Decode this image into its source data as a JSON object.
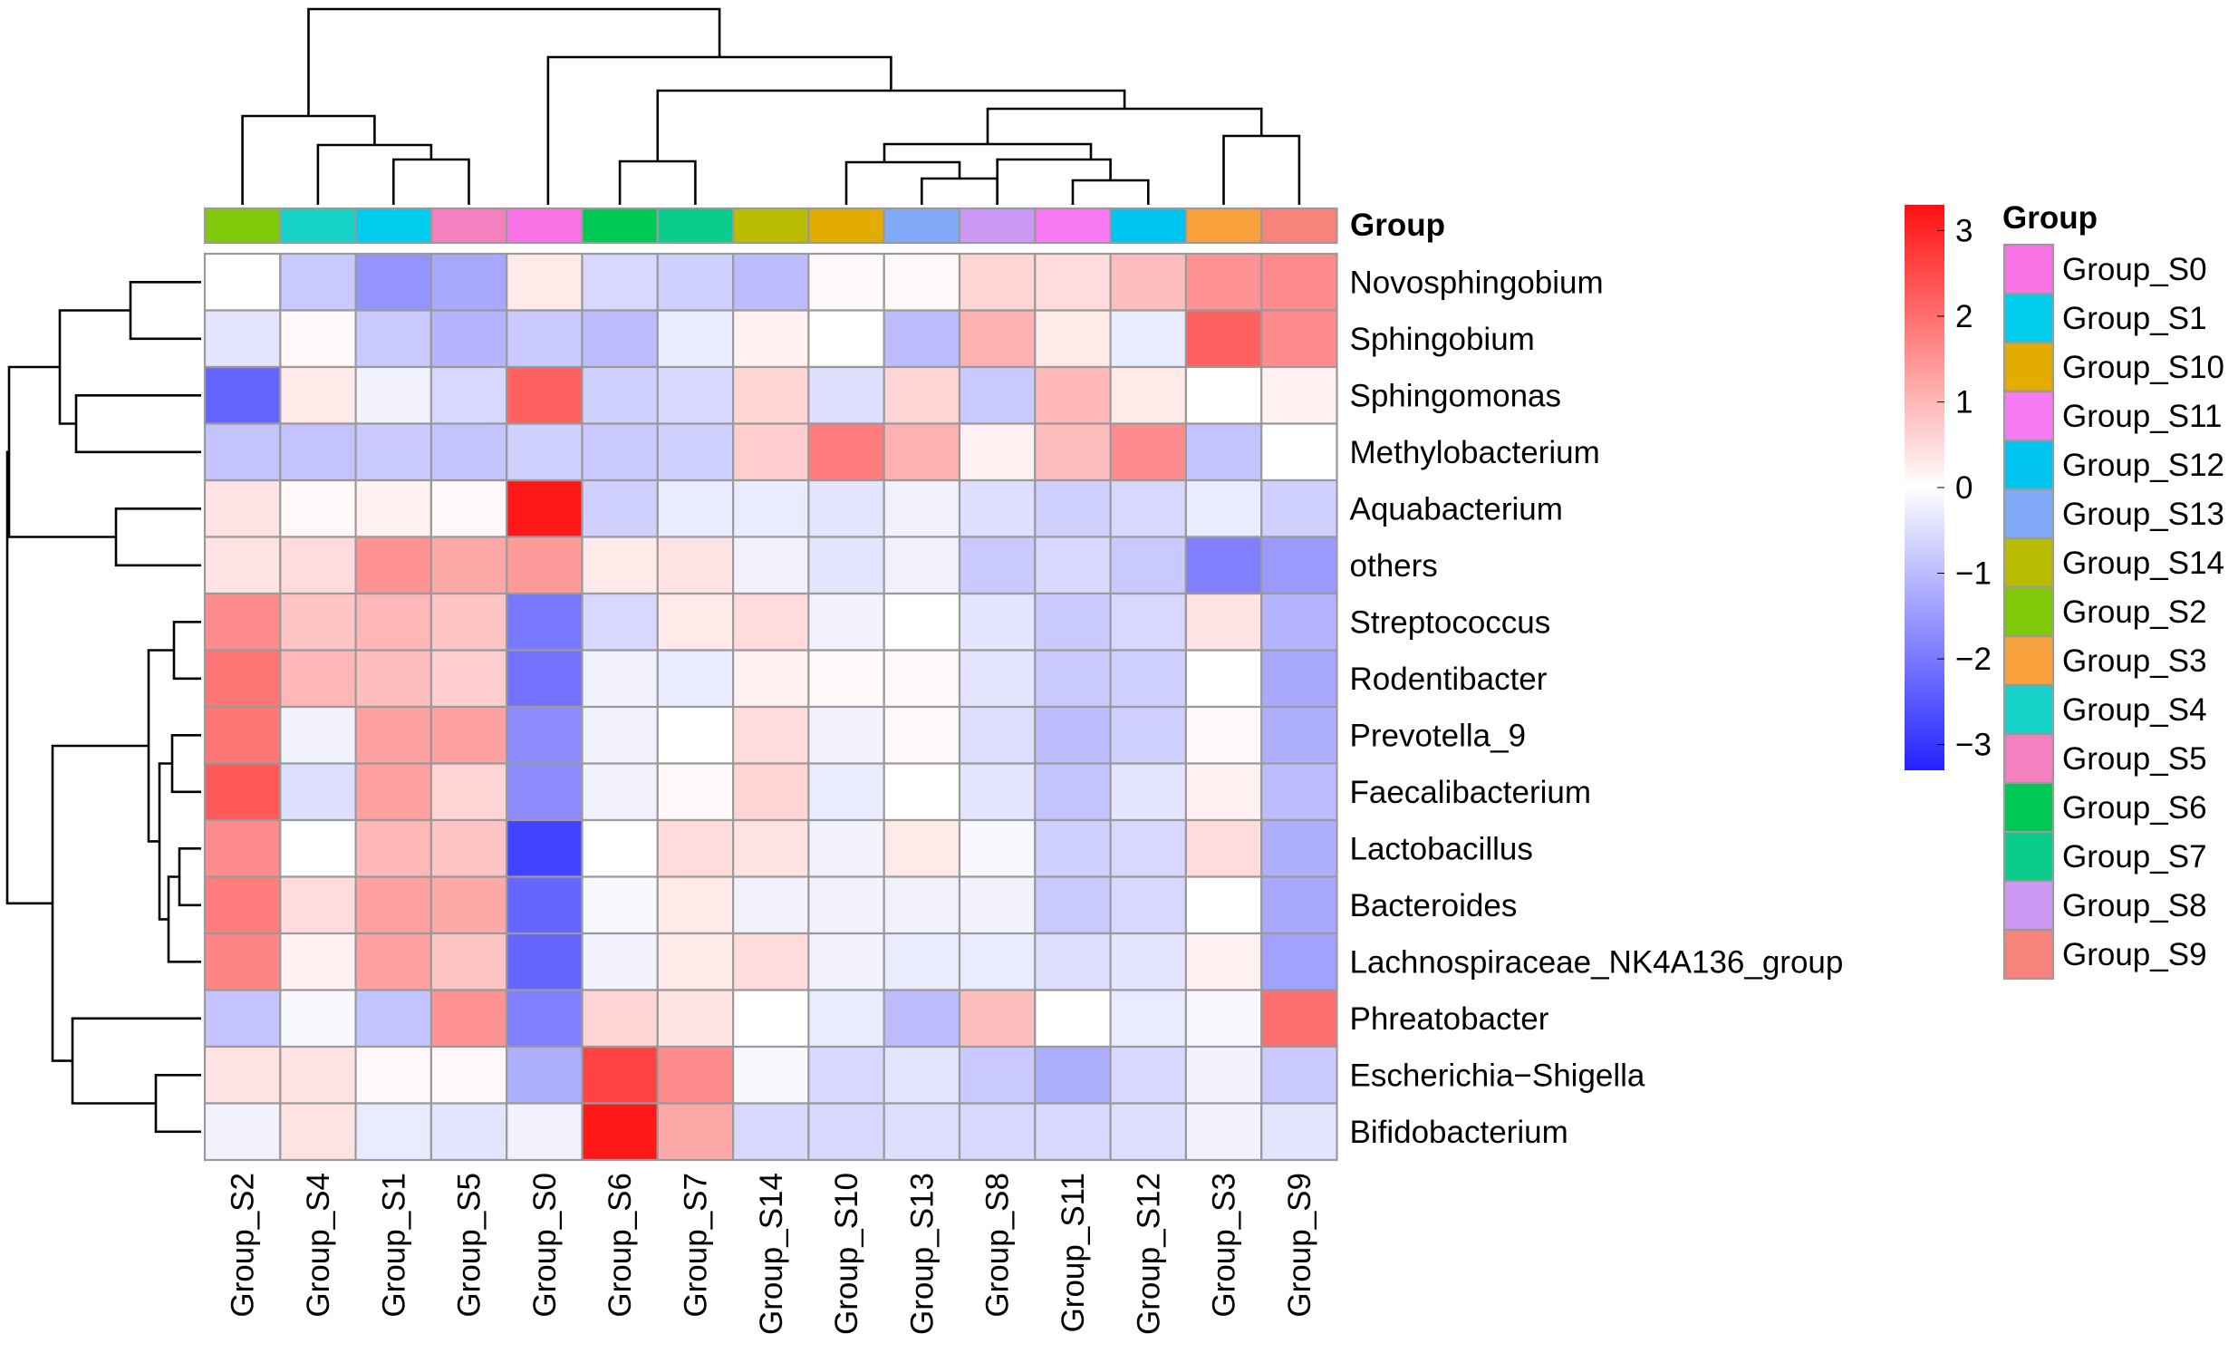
{
  "chart_data": {
    "type": "heatmap",
    "title": "",
    "annotation_title": "Group",
    "columns": [
      "Group_S2",
      "Group_S4",
      "Group_S1",
      "Group_S5",
      "Group_S0",
      "Group_S6",
      "Group_S7",
      "Group_S14",
      "Group_S10",
      "Group_S13",
      "Group_S8",
      "Group_S11",
      "Group_S12",
      "Group_S3",
      "Group_S9"
    ],
    "rows": [
      "Novosphingobium",
      "Sphingobium",
      "Sphingomonas",
      "Methylobacterium",
      "Aquabacterium",
      "others",
      "Streptococcus",
      "Rodentibacter",
      "Prevotella_9",
      "Faecalibacterium",
      "Lactobacillus",
      "Bacteroides",
      "Lachnospiraceae_NK4A136_group",
      "Phreatobacter",
      "Escherichia−Shigella",
      "Bifidobacterium"
    ],
    "values": [
      [
        0.0,
        -0.8,
        -1.6,
        -1.3,
        0.3,
        -0.6,
        -0.7,
        -1.0,
        0.1,
        0.1,
        0.6,
        0.5,
        0.9,
        1.5,
        1.6
      ],
      [
        -0.4,
        0.1,
        -0.8,
        -1.1,
        -0.8,
        -1.0,
        -0.3,
        0.2,
        0.0,
        -1.0,
        1.1,
        0.3,
        -0.3,
        2.2,
        1.6
      ],
      [
        -2.3,
        0.3,
        -0.2,
        -0.6,
        2.2,
        -0.7,
        -0.6,
        0.6,
        -0.5,
        0.6,
        -0.8,
        1.0,
        0.3,
        0.0,
        0.2
      ],
      [
        -0.9,
        -0.9,
        -0.8,
        -0.9,
        -0.7,
        -0.8,
        -0.7,
        0.7,
        1.8,
        1.1,
        0.2,
        0.9,
        1.6,
        -0.9,
        0.0
      ],
      [
        0.4,
        0.1,
        0.2,
        0.1,
        3.2,
        -0.7,
        -0.3,
        -0.3,
        -0.4,
        -0.2,
        -0.5,
        -0.7,
        -0.6,
        -0.3,
        -0.7
      ],
      [
        0.4,
        0.5,
        1.5,
        1.2,
        1.4,
        0.3,
        0.4,
        -0.2,
        -0.4,
        -0.2,
        -0.8,
        -0.6,
        -0.8,
        -1.9,
        -1.5
      ],
      [
        1.6,
        0.8,
        1.0,
        0.8,
        -2.0,
        -0.6,
        0.3,
        0.5,
        -0.2,
        0.0,
        -0.4,
        -0.8,
        -0.6,
        0.4,
        -1.1
      ],
      [
        1.9,
        1.0,
        0.9,
        0.7,
        -2.1,
        -0.2,
        -0.3,
        0.2,
        0.1,
        0.1,
        -0.4,
        -0.8,
        -0.7,
        0.0,
        -1.3
      ],
      [
        1.9,
        -0.2,
        1.3,
        1.3,
        -1.7,
        -0.2,
        0.0,
        0.5,
        -0.2,
        0.1,
        -0.5,
        -1.0,
        -0.7,
        0.1,
        -1.2
      ],
      [
        2.3,
        -0.5,
        1.3,
        0.6,
        -1.7,
        -0.2,
        0.1,
        0.6,
        -0.3,
        0.0,
        -0.4,
        -0.9,
        -0.4,
        0.2,
        -1.0
      ],
      [
        1.6,
        0.0,
        1.0,
        0.8,
        -2.8,
        0.0,
        0.5,
        0.4,
        -0.2,
        0.3,
        -0.1,
        -0.7,
        -0.6,
        0.5,
        -1.2
      ],
      [
        1.8,
        0.5,
        1.3,
        1.2,
        -2.3,
        -0.1,
        0.3,
        -0.2,
        -0.2,
        -0.2,
        -0.2,
        -0.8,
        -0.6,
        0.0,
        -1.3
      ],
      [
        1.7,
        0.2,
        1.3,
        0.8,
        -2.3,
        -0.2,
        0.3,
        0.5,
        -0.2,
        -0.3,
        -0.3,
        -0.5,
        -0.4,
        0.2,
        -1.4
      ],
      [
        -0.9,
        -0.1,
        -0.9,
        1.5,
        -1.9,
        0.6,
        0.4,
        0.0,
        -0.3,
        -1.0,
        0.9,
        0.0,
        -0.3,
        -0.1,
        2.0
      ],
      [
        0.4,
        0.4,
        0.1,
        0.1,
        -1.2,
        2.6,
        1.6,
        -0.1,
        -0.6,
        -0.4,
        -0.8,
        -1.2,
        -0.6,
        -0.2,
        -0.8
      ],
      [
        -0.2,
        0.4,
        -0.3,
        -0.4,
        -0.2,
        3.2,
        1.2,
        -0.6,
        -0.6,
        -0.5,
        -0.6,
        -0.6,
        -0.5,
        -0.2,
        -0.4
      ]
    ],
    "color_scale": {
      "low": "#2222ff",
      "mid": "#ffffff",
      "high": "#ff1111",
      "min": -3.3,
      "max": 3.3
    },
    "colorbar_ticks": [
      3,
      2,
      1,
      0,
      -1,
      -2,
      -3
    ],
    "colorbar_tick_labels": [
      "3",
      "2",
      "1",
      "0",
      "−1",
      "−2",
      "−3"
    ],
    "column_group_colors": [
      "#7fc80a",
      "#14d2c8",
      "#00ccee",
      "#f580c0",
      "#fa73e6",
      "#00c854",
      "#0acc8c",
      "#b9bc00",
      "#e2ac00",
      "#80aaf8",
      "#cc99f4",
      "#f87af4",
      "#00c4f0",
      "#f8a03c",
      "#f7847c"
    ],
    "legend": {
      "title": "Group",
      "entries": [
        {
          "label": "Group_S0",
          "color": "#fa73e6"
        },
        {
          "label": "Group_S1",
          "color": "#00ccee"
        },
        {
          "label": "Group_S10",
          "color": "#e2ac00"
        },
        {
          "label": "Group_S11",
          "color": "#f87af4"
        },
        {
          "label": "Group_S12",
          "color": "#00c4f0"
        },
        {
          "label": "Group_S13",
          "color": "#80aaf8"
        },
        {
          "label": "Group_S14",
          "color": "#b9bc00"
        },
        {
          "label": "Group_S2",
          "color": "#7fc80a"
        },
        {
          "label": "Group_S3",
          "color": "#f8a03c"
        },
        {
          "label": "Group_S4",
          "color": "#14d2c8"
        },
        {
          "label": "Group_S5",
          "color": "#f580c0"
        },
        {
          "label": "Group_S6",
          "color": "#00c854"
        },
        {
          "label": "Group_S7",
          "color": "#0acc8c"
        },
        {
          "label": "Group_S8",
          "color": "#cc99f4"
        },
        {
          "label": "Group_S9",
          "color": "#f7847c"
        }
      ]
    }
  }
}
